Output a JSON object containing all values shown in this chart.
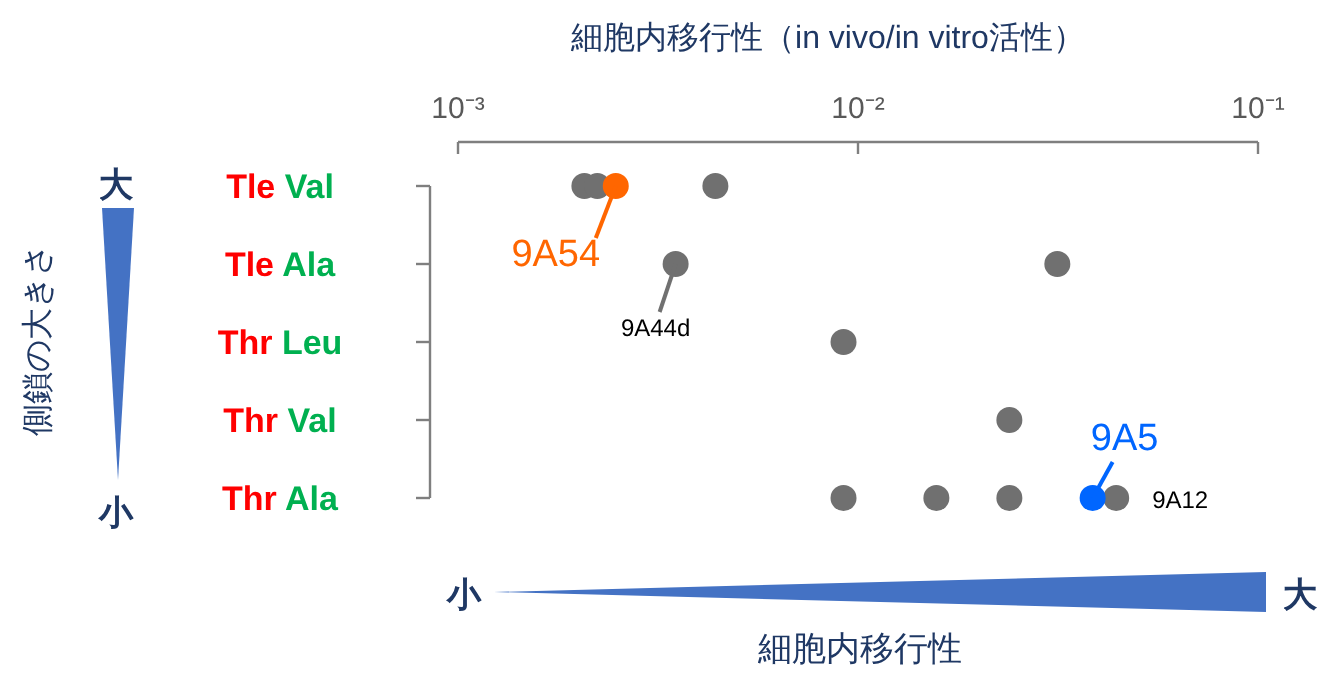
{
  "chart_data": {
    "type": "scatter",
    "orientation": "horizontal",
    "xlabel": "細胞内移行性（in vivo/in vitro活性）",
    "log": "x",
    "xlim": [
      0.001,
      0.1
    ],
    "xticks": [
      {
        "value": 0.001,
        "label": "10⁻³"
      },
      {
        "value": 0.01,
        "label": "10⁻²"
      },
      {
        "value": 0.1,
        "label": "10⁻¹"
      }
    ],
    "grid": false,
    "marker": "circle",
    "categories": [
      "Tle Val",
      "Tle Ala",
      "Thr Leu",
      "Thr Val",
      "Thr Ala"
    ],
    "series": [
      {
        "color": "#707070",
        "values": [
          0.00207,
          0.0035,
          0.0092,
          0.0239,
          0.0092
        ]
      },
      {
        "color": "#707070",
        "values": [
          0.00223,
          0.0315,
          null,
          null,
          0.0157
        ]
      },
      {
        "color": "#707070",
        "values": [
          0.0044,
          null,
          null,
          null,
          0.0239
        ]
      },
      {
        "color": "#707070",
        "values": [
          null,
          null,
          null,
          null,
          0.0442
        ]
      },
      {
        "color": "#ff6600",
        "values": [
          0.00248,
          null,
          null,
          null,
          null
        ]
      },
      {
        "color": "#0066ff",
        "values": [
          null,
          null,
          null,
          null,
          0.0386
        ]
      }
    ],
    "annotations": [
      {
        "text": "9A54",
        "x": 0.00248,
        "y": "Tle Val"
      },
      {
        "text": "9A44d",
        "x": 0.0035,
        "y": "Tle Ala"
      },
      {
        "text": "9A5",
        "x": 0.0386,
        "y": "Thr Ala"
      },
      {
        "text": "9A12",
        "x": 0.0442,
        "y": "Thr Ala"
      },
      "大",
      "小",
      "小",
      "大",
      "細胞内移行性",
      "側鎖の大きさ"
    ]
  }
}
